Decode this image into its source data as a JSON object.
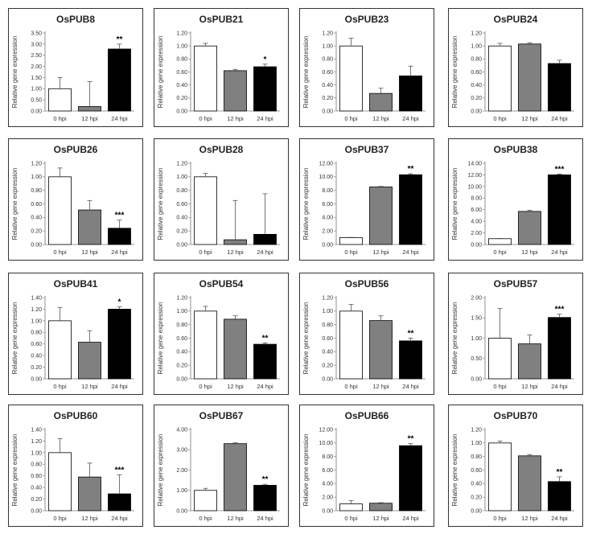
{
  "chart_data": [
    {
      "type": "bar",
      "title": "OsPUB8",
      "ylabel": "Relative gene expression",
      "categories": [
        "0 hpi",
        "12 hpi",
        "24 hpi"
      ],
      "values": [
        1.0,
        0.2,
        2.78
      ],
      "errors": [
        0.5,
        1.12,
        0.22
      ],
      "ylim": [
        0,
        3.5
      ],
      "yticks": [
        "0.00",
        "0.50",
        "1.00",
        "1.50",
        "2.00",
        "2.50",
        "3.00",
        "3.50"
      ],
      "significance": [
        "",
        "",
        "**"
      ]
    },
    {
      "type": "bar",
      "title": "OsPUB21",
      "ylabel": "Relative gene expression",
      "categories": [
        "0 hpi",
        "12 hpi",
        "24 hpi"
      ],
      "values": [
        1.0,
        0.62,
        0.68
      ],
      "errors": [
        0.04,
        0.02,
        0.04
      ],
      "ylim": [
        0,
        1.2
      ],
      "yticks": [
        "0.00",
        "0.20",
        "0.40",
        "0.60",
        "0.80",
        "1.00",
        "1.20"
      ],
      "significance": [
        "",
        "",
        "*"
      ]
    },
    {
      "type": "bar",
      "title": "OsPUB23",
      "ylabel": "Relative gene expression",
      "categories": [
        "0 hpi",
        "12 hpi",
        "24 hpi"
      ],
      "values": [
        1.0,
        0.27,
        0.54
      ],
      "errors": [
        0.12,
        0.08,
        0.15
      ],
      "ylim": [
        0,
        1.2
      ],
      "yticks": [
        "0.00",
        "0.20",
        "0.40",
        "0.60",
        "0.80",
        "1.00",
        "1.20"
      ],
      "significance": [
        "",
        "",
        ""
      ]
    },
    {
      "type": "bar",
      "title": "OsPUB24",
      "ylabel": "Relative gene expression",
      "categories": [
        "0 hpi",
        "12 hpi",
        "24 hpi"
      ],
      "values": [
        1.0,
        1.03,
        0.73
      ],
      "errors": [
        0.04,
        0.02,
        0.05
      ],
      "ylim": [
        0,
        1.2
      ],
      "yticks": [
        "0.00",
        "0.20",
        "0.40",
        "0.60",
        "0.80",
        "1.00",
        "1.20"
      ],
      "significance": [
        "",
        "",
        ""
      ]
    },
    {
      "type": "bar",
      "title": "OsPUB26",
      "ylabel": "Relative gene expression",
      "categories": [
        "0 hpi",
        "12 hpi",
        "24 hpi"
      ],
      "values": [
        1.0,
        0.51,
        0.24
      ],
      "errors": [
        0.13,
        0.14,
        0.12
      ],
      "ylim": [
        0,
        1.2
      ],
      "yticks": [
        "0.00",
        "0.20",
        "0.40",
        "0.60",
        "0.80",
        "1.00",
        "1.20"
      ],
      "significance": [
        "",
        "",
        "***"
      ]
    },
    {
      "type": "bar",
      "title": "OsPUB28",
      "ylabel": "Relative gene expression",
      "categories": [
        "0 hpi",
        "12 hpi",
        "24 hpi"
      ],
      "values": [
        1.0,
        0.07,
        0.15
      ],
      "errors": [
        0.05,
        0.58,
        0.6
      ],
      "ylim": [
        0,
        1.2
      ],
      "yticks": [
        "0.00",
        "0.20",
        "0.40",
        "0.60",
        "0.80",
        "1.00",
        "1.20"
      ],
      "significance": [
        "",
        "",
        ""
      ]
    },
    {
      "type": "bar",
      "title": "OsPUB37",
      "ylabel": "Relative gene expression",
      "categories": [
        "0 hpi",
        "12 hpi",
        "24 hpi"
      ],
      "values": [
        1.0,
        8.5,
        10.3
      ],
      "errors": [
        0.05,
        0.08,
        0.15
      ],
      "ylim": [
        0,
        12
      ],
      "yticks": [
        "0.00",
        "2.00",
        "4.00",
        "6.00",
        "8.00",
        "10.00",
        "12.00"
      ],
      "significance": [
        "",
        "",
        "**"
      ]
    },
    {
      "type": "bar",
      "title": "OsPUB38",
      "ylabel": "Relative gene expression",
      "categories": [
        "0 hpi",
        "12 hpi",
        "24 hpi"
      ],
      "values": [
        1.0,
        5.7,
        12.0
      ],
      "errors": [
        0.05,
        0.2,
        0.15
      ],
      "ylim": [
        0,
        14
      ],
      "yticks": [
        "0.00",
        "2.00",
        "4.00",
        "6.00",
        "8.00",
        "10.00",
        "12.00",
        "14.00"
      ],
      "significance": [
        "",
        "",
        "***"
      ]
    },
    {
      "type": "bar",
      "title": "OsPUB41",
      "ylabel": "Relative gene expression",
      "categories": [
        "0 hpi",
        "12 hpi",
        "24 hpi"
      ],
      "values": [
        1.0,
        0.63,
        1.2
      ],
      "errors": [
        0.23,
        0.2,
        0.04
      ],
      "ylim": [
        0,
        1.4
      ],
      "yticks": [
        "0.00",
        "0.20",
        "0.40",
        "0.60",
        "0.80",
        "1.00",
        "1.20",
        "1.40"
      ],
      "significance": [
        "",
        "",
        "*"
      ]
    },
    {
      "type": "bar",
      "title": "OsPUB54",
      "ylabel": "Relative gene expression",
      "categories": [
        "0 hpi",
        "12 hpi",
        "24 hpi"
      ],
      "values": [
        1.0,
        0.88,
        0.51
      ],
      "errors": [
        0.07,
        0.05,
        0.02
      ],
      "ylim": [
        0,
        1.2
      ],
      "yticks": [
        "0.00",
        "0.20",
        "0.40",
        "0.60",
        "0.80",
        "1.00",
        "1.20"
      ],
      "significance": [
        "",
        "",
        "**"
      ]
    },
    {
      "type": "bar",
      "title": "OsPUB56",
      "ylabel": "Relative gene expression",
      "categories": [
        "0 hpi",
        "12 hpi",
        "24 hpi"
      ],
      "values": [
        1.0,
        0.86,
        0.56
      ],
      "errors": [
        0.1,
        0.07,
        0.04
      ],
      "ylim": [
        0,
        1.2
      ],
      "yticks": [
        "0.00",
        "0.20",
        "0.40",
        "0.60",
        "0.80",
        "1.00",
        "1.20"
      ],
      "significance": [
        "",
        "",
        "**"
      ]
    },
    {
      "type": "bar",
      "title": "OsPUB57",
      "ylabel": "Relative gene expression",
      "categories": [
        "0 hpi",
        "12 hpi",
        "24 hpi"
      ],
      "values": [
        1.0,
        0.86,
        1.51
      ],
      "errors": [
        0.73,
        0.22,
        0.08
      ],
      "ylim": [
        0,
        2.0
      ],
      "yticks": [
        "0.00",
        "0.50",
        "1.00",
        "1.50",
        "2.00"
      ],
      "significance": [
        "",
        "",
        "***"
      ]
    },
    {
      "type": "bar",
      "title": "OsPUB60",
      "ylabel": "Relative gene expression",
      "categories": [
        "0 hpi",
        "12 hpi",
        "24 hpi"
      ],
      "values": [
        1.0,
        0.58,
        0.29
      ],
      "errors": [
        0.24,
        0.24,
        0.33
      ],
      "ylim": [
        0,
        1.4
      ],
      "yticks": [
        "0.00",
        "0.20",
        "0.40",
        "0.60",
        "0.80",
        "1.00",
        "1.20",
        "1.40"
      ],
      "significance": [
        "",
        "",
        "***"
      ]
    },
    {
      "type": "bar",
      "title": "OsPUB67",
      "ylabel": "Relative gene expression",
      "categories": [
        "0 hpi",
        "12 hpi",
        "24 hpi"
      ],
      "values": [
        1.0,
        3.3,
        1.25
      ],
      "errors": [
        0.1,
        0.04,
        0.05
      ],
      "ylim": [
        0,
        4.0
      ],
      "yticks": [
        "0.00",
        "1.00",
        "2.00",
        "3.00",
        "4.00"
      ],
      "significance": [
        "",
        "",
        "**"
      ]
    },
    {
      "type": "bar",
      "title": "OsPUB66",
      "ylabel": "Relative gene expression",
      "categories": [
        "0 hpi",
        "12 hpi",
        "24 hpi"
      ],
      "values": [
        1.0,
        1.1,
        9.6
      ],
      "errors": [
        0.5,
        0.08,
        0.3
      ],
      "ylim": [
        0,
        12
      ],
      "yticks": [
        "0.00",
        "2.00",
        "4.00",
        "6.00",
        "8.00",
        "10.00",
        "12.00"
      ],
      "significance": [
        "",
        "",
        "**"
      ]
    },
    {
      "type": "bar",
      "title": "OsPUB70",
      "ylabel": "Relative gene expression",
      "categories": [
        "0 hpi",
        "12 hpi",
        "24 hpi"
      ],
      "values": [
        1.0,
        0.81,
        0.43
      ],
      "errors": [
        0.03,
        0.02,
        0.07
      ],
      "ylim": [
        0,
        1.2
      ],
      "yticks": [
        "0.00",
        "0.20",
        "0.40",
        "0.60",
        "0.80",
        "1.00",
        "1.20"
      ],
      "significance": [
        "",
        "",
        "**"
      ]
    }
  ],
  "colors": {
    "bar_0hpi": "#ffffff",
    "bar_12hpi": "#808080",
    "bar_24hpi": "#000000",
    "bar_stroke": "#000000",
    "panel_border": "#333333",
    "axis": "#777777"
  }
}
